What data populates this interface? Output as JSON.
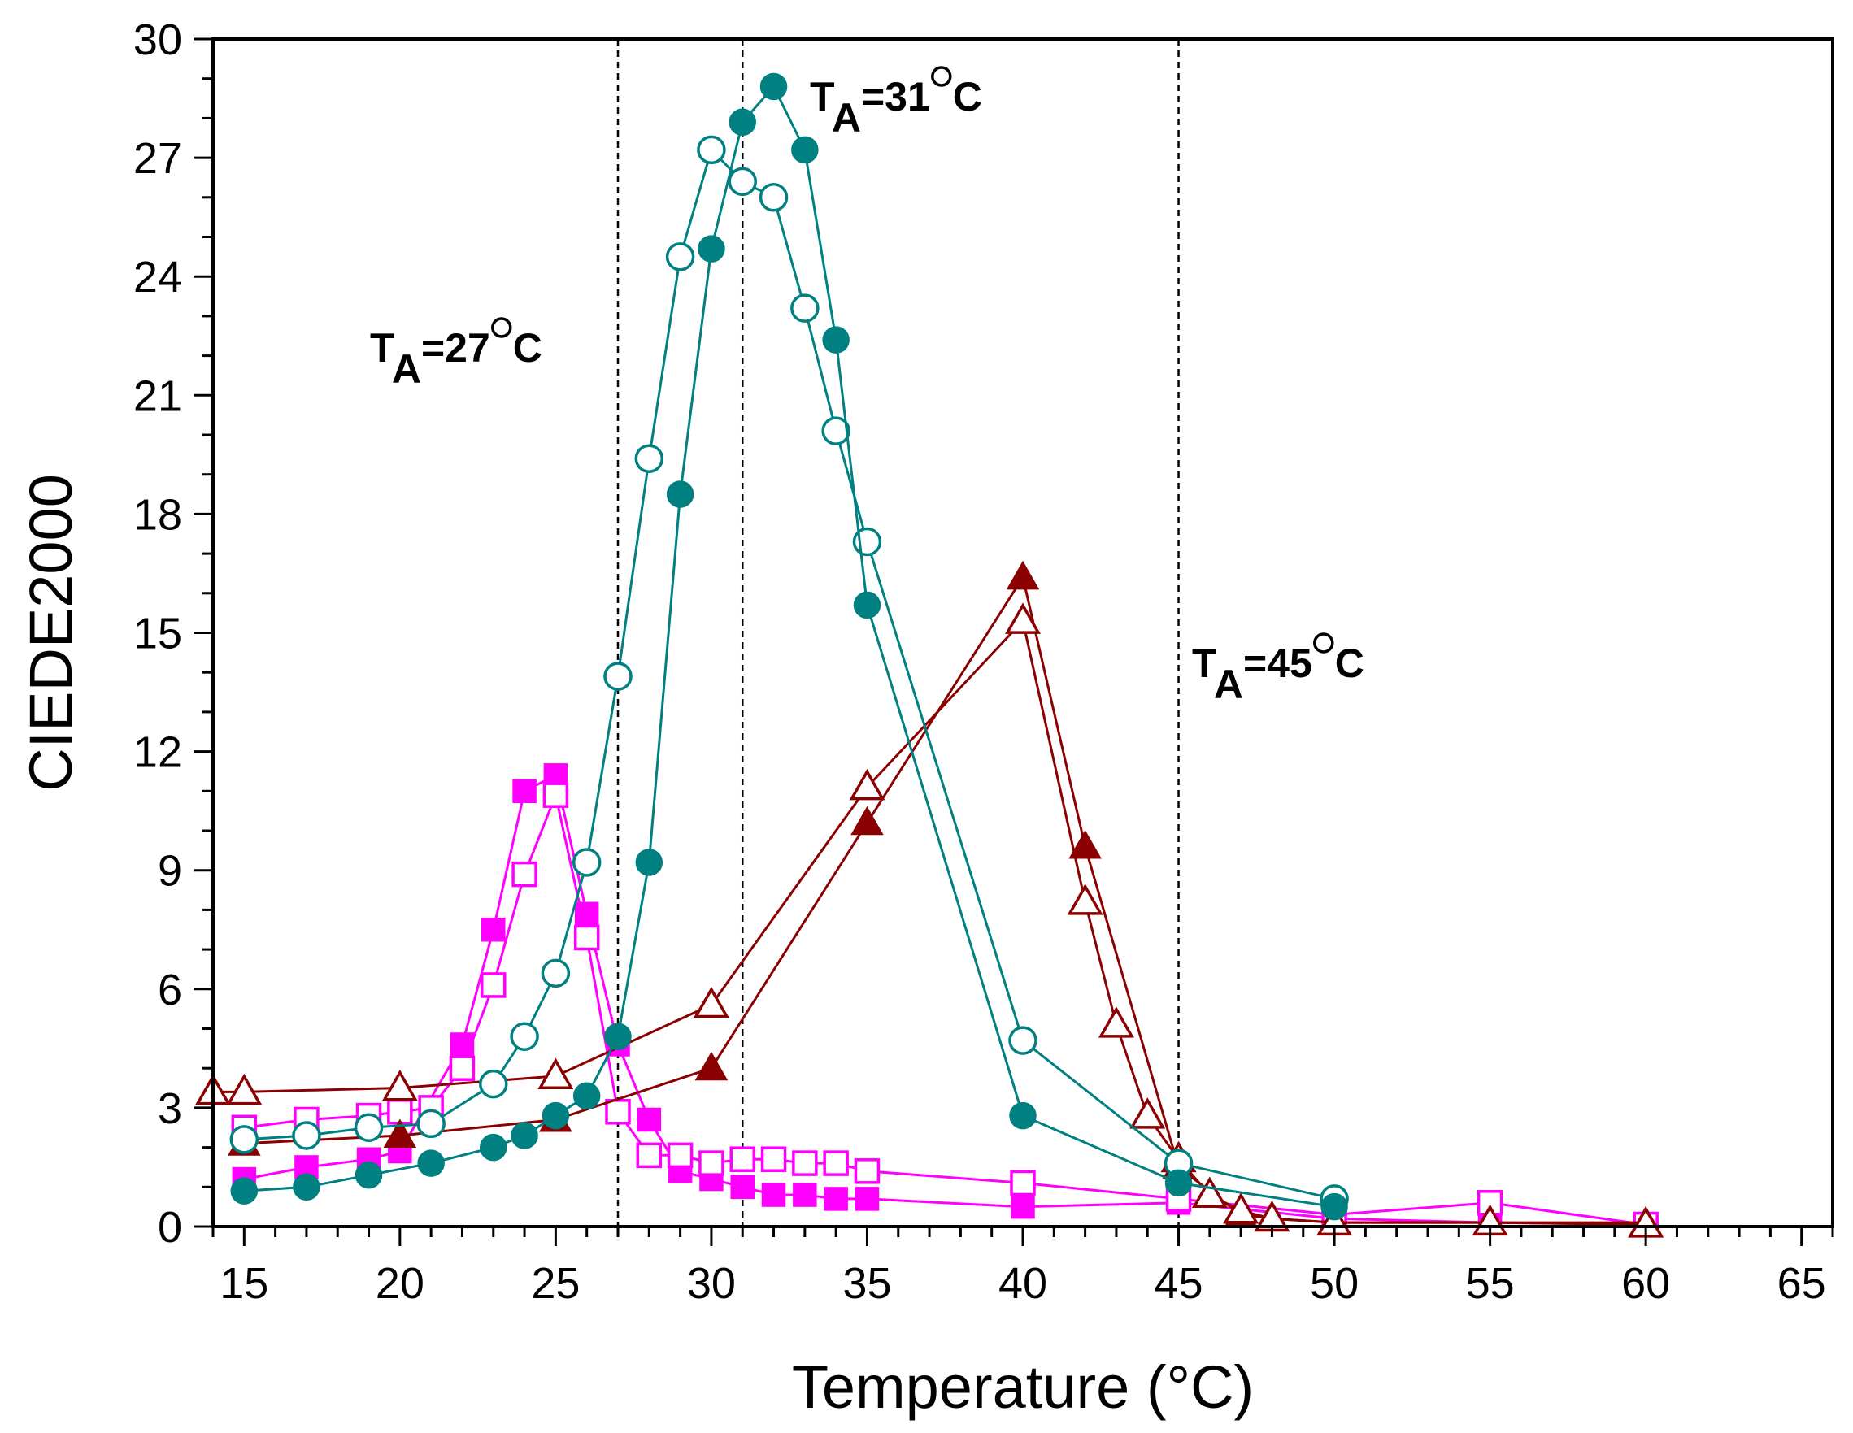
{
  "chart_data": {
    "type": "line",
    "title": "",
    "xlabel": "Temperature (°C)",
    "ylabel": "CIEDE2000",
    "xlim": [
      14,
      66
    ],
    "ylim": [
      0,
      30
    ],
    "xticks": [
      15,
      20,
      25,
      30,
      35,
      40,
      45,
      50,
      55,
      60,
      65
    ],
    "yticks": [
      0,
      3,
      6,
      9,
      12,
      15,
      18,
      21,
      24,
      27,
      30
    ],
    "xtick_labels": [
      "15",
      "20",
      "25",
      "30",
      "35",
      "40",
      "45",
      "50",
      "55",
      "60",
      "65"
    ],
    "ytick_labels": [
      "0",
      "3",
      "6",
      "9",
      "12",
      "15",
      "18",
      "21",
      "24",
      "27",
      "30"
    ],
    "grid": false,
    "vlines": [
      27,
      31,
      45
    ],
    "annotations": [
      {
        "main": "T",
        "sub": "A",
        "rest": "=27",
        "unit": "C",
        "x": 27
      },
      {
        "main": "T",
        "sub": "A",
        "rest": "=31",
        "unit": "C",
        "x": 31
      },
      {
        "main": "T",
        "sub": "A",
        "rest": "=45",
        "unit": "C",
        "x": 45
      }
    ],
    "series": [
      {
        "name": "magenta filled squares",
        "color": "#ff00ff",
        "marker": "square",
        "filled": true,
        "x": [
          15,
          17,
          19,
          20,
          22,
          23,
          24,
          25,
          26,
          27,
          28,
          29,
          30,
          31,
          32,
          33,
          34,
          35,
          40,
          45,
          50,
          55,
          60
        ],
        "y": [
          1.2,
          1.5,
          1.7,
          1.9,
          4.6,
          7.5,
          11.0,
          11.4,
          7.9,
          4.6,
          2.7,
          1.4,
          1.2,
          1.0,
          0.8,
          0.8,
          0.7,
          0.7,
          0.5,
          0.6,
          0.2,
          0.1,
          0.05
        ]
      },
      {
        "name": "magenta open squares",
        "color": "#ff00ff",
        "marker": "square",
        "filled": false,
        "x": [
          15,
          17,
          19,
          20,
          21,
          22,
          23,
          24,
          25,
          26,
          27,
          28,
          29,
          30,
          31,
          32,
          33,
          34,
          35,
          40,
          45,
          50,
          55,
          60
        ],
        "y": [
          2.5,
          2.7,
          2.8,
          2.9,
          3.0,
          4.0,
          6.1,
          8.9,
          10.9,
          7.3,
          2.9,
          1.8,
          1.8,
          1.6,
          1.7,
          1.7,
          1.6,
          1.6,
          1.4,
          1.1,
          0.7,
          0.3,
          0.6,
          0.05
        ]
      },
      {
        "name": "teal filled circles",
        "color": "#008080",
        "marker": "circle",
        "filled": true,
        "x": [
          15,
          17,
          19,
          21,
          23,
          24,
          25,
          26,
          27,
          28,
          29,
          30,
          31,
          32,
          33,
          34,
          35,
          40,
          45,
          50
        ],
        "y": [
          0.9,
          1.0,
          1.3,
          1.6,
          2.0,
          2.3,
          2.8,
          3.3,
          4.8,
          9.2,
          18.5,
          24.7,
          27.9,
          28.8,
          27.2,
          22.4,
          15.7,
          2.8,
          1.1,
          0.5
        ]
      },
      {
        "name": "teal open circles",
        "color": "#008080",
        "marker": "circle",
        "filled": false,
        "x": [
          15,
          17,
          19,
          21,
          23,
          24,
          25,
          26,
          27,
          28,
          29,
          30,
          31,
          32,
          33,
          34,
          35,
          40,
          45,
          50
        ],
        "y": [
          2.2,
          2.3,
          2.5,
          2.6,
          3.6,
          4.8,
          6.4,
          9.2,
          13.9,
          19.4,
          24.5,
          27.2,
          26.4,
          26.0,
          23.2,
          20.1,
          17.3,
          4.7,
          1.6,
          0.7
        ]
      },
      {
        "name": "dark red filled triangles",
        "color": "#8b0000",
        "marker": "triangle",
        "filled": true,
        "x": [
          15,
          20,
          25,
          30,
          35,
          40,
          42,
          45,
          47,
          48,
          50,
          55,
          60
        ],
        "y": [
          2.1,
          2.3,
          2.7,
          4.0,
          10.2,
          16.4,
          9.6,
          1.5,
          0.3,
          0.2,
          0.1,
          0.1,
          0.1
        ]
      },
      {
        "name": "dark red open triangles",
        "color": "#8b0000",
        "marker": "triangle",
        "filled": false,
        "x": [
          14,
          15,
          20,
          25,
          30,
          35,
          40,
          42,
          43,
          44,
          45,
          46,
          47,
          48,
          50,
          55,
          60
        ],
        "y": [
          3.4,
          3.4,
          3.5,
          3.8,
          5.6,
          11.1,
          15.3,
          8.2,
          5.1,
          2.8,
          1.7,
          0.8,
          0.4,
          0.2,
          0.1,
          0.1,
          0.05
        ]
      }
    ]
  }
}
